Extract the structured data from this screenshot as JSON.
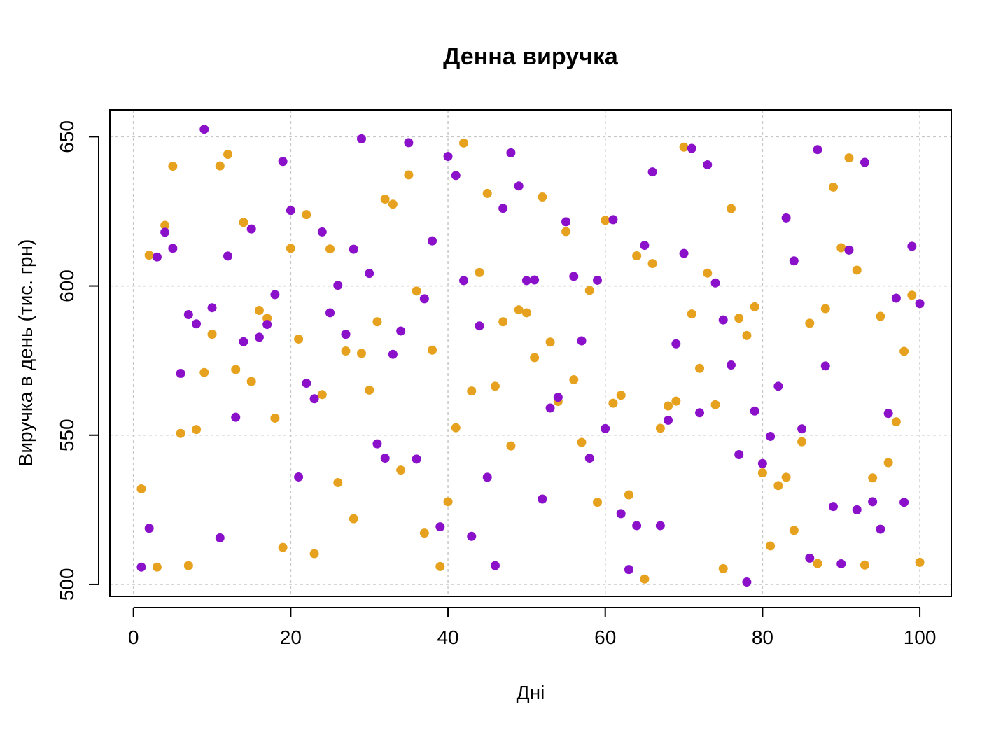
{
  "chart_data": {
    "type": "scatter",
    "title": "Денна виручка",
    "xlabel": "Дні",
    "ylabel": "Виручка в день (тис. грн)",
    "xlim": [
      -3,
      104
    ],
    "ylim": [
      496,
      659
    ],
    "x_ticks": [
      "0",
      "20",
      "40",
      "60",
      "80",
      "100"
    ],
    "y_ticks": [
      "500",
      "550",
      "600",
      "650"
    ],
    "grid": true,
    "legend": "none",
    "series": [
      {
        "color": "#E6A21F",
        "x": [
          1,
          2,
          3,
          4,
          5,
          6,
          7,
          8,
          9,
          10,
          11,
          12,
          13,
          14,
          15,
          16,
          17,
          18,
          19,
          20,
          21,
          22,
          23,
          24,
          25,
          26,
          27,
          28,
          29,
          30,
          31,
          32,
          33,
          34,
          35,
          36,
          37,
          38,
          39,
          40,
          41,
          42,
          43,
          44,
          45,
          46,
          47,
          48,
          49,
          50,
          51,
          52,
          53,
          54,
          55,
          56,
          57,
          58,
          59,
          60,
          61,
          62,
          63,
          64,
          65,
          66,
          67,
          68,
          69,
          70,
          71,
          72,
          73,
          74,
          75,
          76,
          77,
          78,
          79,
          80,
          81,
          82,
          83,
          84,
          85,
          86,
          87,
          88,
          89,
          90,
          91,
          92,
          93,
          94,
          95,
          96,
          97,
          98,
          99,
          100
        ],
        "values": [
          532.0,
          610.3,
          505.8,
          620.3,
          640.1,
          550.6,
          506.3,
          551.9,
          571.0,
          583.8,
          640.2,
          644.1,
          572.0,
          621.3,
          568.0,
          591.8,
          589.2,
          555.7,
          512.4,
          612.6,
          582.2,
          623.9,
          510.3,
          563.6,
          612.4,
          534.1,
          578.2,
          522.0,
          577.4,
          565.1,
          588.0,
          629.1,
          627.4,
          538.3,
          637.2,
          598.3,
          517.2,
          578.5,
          506.0,
          527.7,
          552.5,
          647.9,
          564.8,
          604.5,
          631.0,
          566.4,
          588.0,
          546.4,
          592.0,
          591.0,
          576.0,
          629.8,
          581.2,
          561.3,
          618.2,
          568.6,
          547.6,
          598.5,
          527.5,
          622.0,
          560.7,
          563.4,
          530.0,
          610.1,
          501.8,
          607.5,
          552.3,
          559.8,
          561.4,
          646.5,
          590.6,
          572.4,
          604.3,
          560.2,
          505.3,
          625.9,
          589.2,
          583.4,
          593.0,
          537.4,
          512.9,
          533.1,
          535.9,
          518.1,
          547.8,
          587.5,
          507.0,
          592.4,
          633.1,
          612.8,
          642.9,
          605.3,
          506.5,
          535.7,
          589.8,
          540.8,
          554.5,
          578.1,
          596.9,
          507.4
        ]
      },
      {
        "color": "#8B10C9",
        "x": [
          1,
          2,
          3,
          4,
          5,
          6,
          7,
          8,
          9,
          10,
          11,
          12,
          13,
          14,
          15,
          16,
          17,
          18,
          19,
          20,
          21,
          22,
          23,
          24,
          25,
          26,
          27,
          28,
          29,
          30,
          31,
          32,
          33,
          34,
          35,
          36,
          37,
          38,
          39,
          40,
          41,
          42,
          43,
          44,
          45,
          46,
          47,
          48,
          49,
          50,
          51,
          52,
          53,
          54,
          55,
          56,
          57,
          58,
          59,
          60,
          61,
          62,
          63,
          64,
          65,
          66,
          67,
          68,
          69,
          70,
          71,
          72,
          73,
          74,
          75,
          76,
          77,
          78,
          79,
          80,
          81,
          82,
          83,
          84,
          85,
          86,
          87,
          88,
          89,
          90,
          91,
          92,
          93,
          94,
          95,
          96,
          97,
          98,
          99,
          100
        ],
        "values": [
          505.8,
          518.8,
          609.7,
          618.0,
          612.6,
          570.7,
          590.4,
          587.3,
          652.5,
          592.7,
          515.6,
          610.0,
          556.0,
          581.3,
          619.1,
          582.8,
          587.1,
          597.1,
          641.7,
          625.3,
          536.0,
          567.4,
          562.2,
          618.1,
          591.0,
          600.2,
          583.8,
          612.3,
          649.3,
          604.2,
          547.1,
          542.3,
          577.1,
          584.9,
          648.0,
          542.0,
          595.7,
          615.1,
          519.3,
          643.4,
          637.0,
          601.8,
          516.1,
          586.6,
          535.9,
          506.3,
          626.0,
          644.6,
          633.5,
          601.8,
          602.0,
          528.6,
          559.1,
          562.7,
          621.5,
          603.2,
          581.6,
          542.3,
          601.9,
          552.2,
          622.2,
          523.7,
          505.0,
          519.7,
          613.6,
          638.2,
          519.7,
          555.0,
          580.6,
          610.9,
          646.1,
          557.5,
          640.6,
          601.0,
          588.6,
          573.5,
          543.5,
          500.8,
          558.1,
          540.5,
          549.6,
          566.4,
          622.8,
          608.4,
          552.1,
          508.8,
          645.7,
          573.2,
          526.1,
          506.9,
          612.0,
          525.0,
          641.4,
          527.7,
          518.5,
          557.3,
          595.9,
          527.5,
          613.3,
          594.1
        ]
      }
    ]
  }
}
